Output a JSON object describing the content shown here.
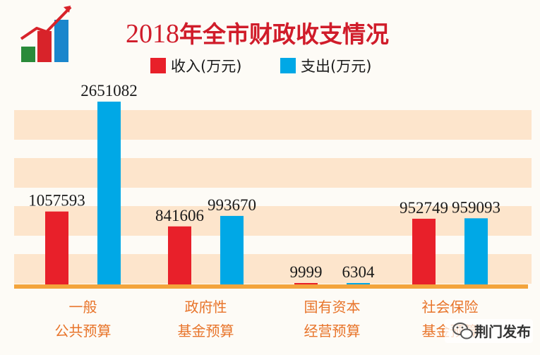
{
  "colors": {
    "income": "#e8202a",
    "expense": "#00a8e6",
    "title": "#d01c2a",
    "band": "#fde5cc",
    "axis": "#f3a43c",
    "category_text": "#e8742a",
    "value_text": "#1a1a1a"
  },
  "icon": "rising-bar-chart-icon",
  "chart_data": {
    "type": "bar",
    "title_year": "2018",
    "title_main": "年全市财政收支情况",
    "legend_position": "top",
    "categories": [
      [
        "一般",
        "公共预算"
      ],
      [
        "政府性",
        "基金预算"
      ],
      [
        "国有资本",
        "经营预算"
      ],
      [
        "社会保险",
        "基金预算"
      ]
    ],
    "series": [
      {
        "name": "收入(万元)",
        "color_key": "income",
        "values": [
          1057593,
          841606,
          9999,
          952749
        ]
      },
      {
        "name": "支出(万元)",
        "color_key": "expense",
        "values": [
          2651082,
          993670,
          6304,
          959093
        ]
      }
    ],
    "xlabel": "",
    "ylabel": "",
    "ylim": [
      0,
      2700000
    ],
    "grid": "horizontal bands",
    "value_labels": true
  },
  "watermark": {
    "icon": "wechat-icon",
    "text": "荆门发布"
  }
}
